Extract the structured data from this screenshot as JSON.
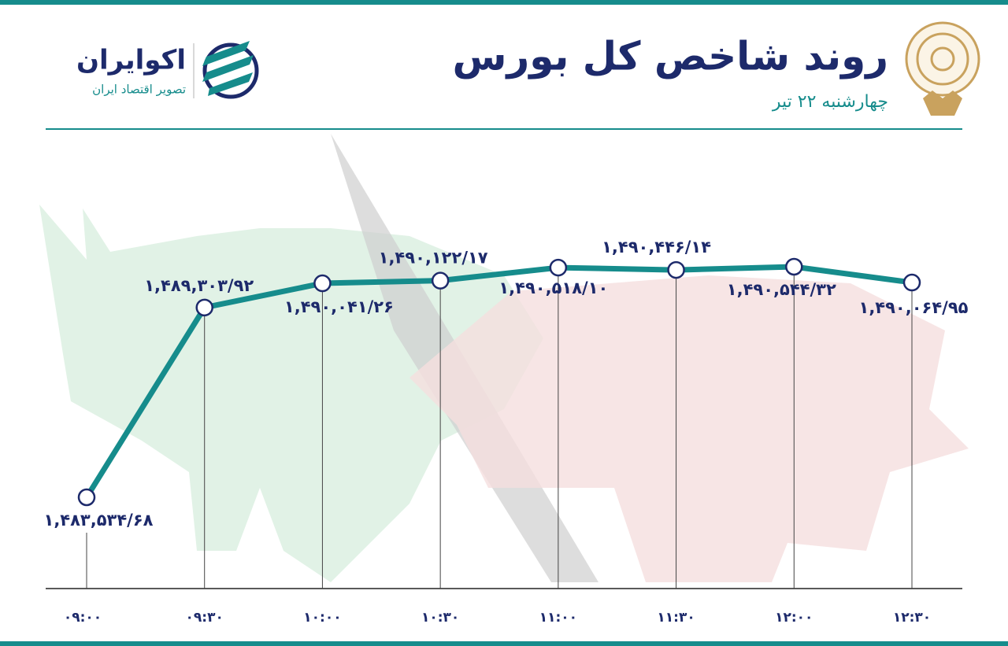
{
  "header": {
    "brand": "اکوایران",
    "tagline": "تصویر اقتصاد ایران"
  },
  "chart_data": {
    "type": "line",
    "title": "روند شاخص کل بورس",
    "subtitle": "چهارشنبه ۲۲ تیر",
    "categories": [
      "۰۹:۰۰",
      "۰۹:۳۰",
      "۱۰:۰۰",
      "۱۰:۳۰",
      "۱۱:۰۰",
      "۱۱:۳۰",
      "۱۲:۰۰",
      "۱۲:۳۰"
    ],
    "values": [
      1483534.68,
      1489303.92,
      1490041.26,
      1490122.17,
      1490518.1,
      1490446.14,
      1490544.32,
      1490064.95
    ],
    "value_labels": [
      "۱,۴۸۳,۵۳۴/۶۸",
      "۱,۴۸۹,۳۰۳/۹۲",
      "۱,۴۹۰,۰۴۱/۲۶",
      "۱,۴۹۰,۱۲۲/۱۷",
      "۱,۴۹۰,۵۱۸/۱۰",
      "۱,۴۹۰,۴۴۶/۱۴",
      "۱,۴۹۰,۵۴۴/۳۲",
      "۱,۴۹۰,۰۶۴/۹۵"
    ],
    "color": "#168c8c"
  }
}
